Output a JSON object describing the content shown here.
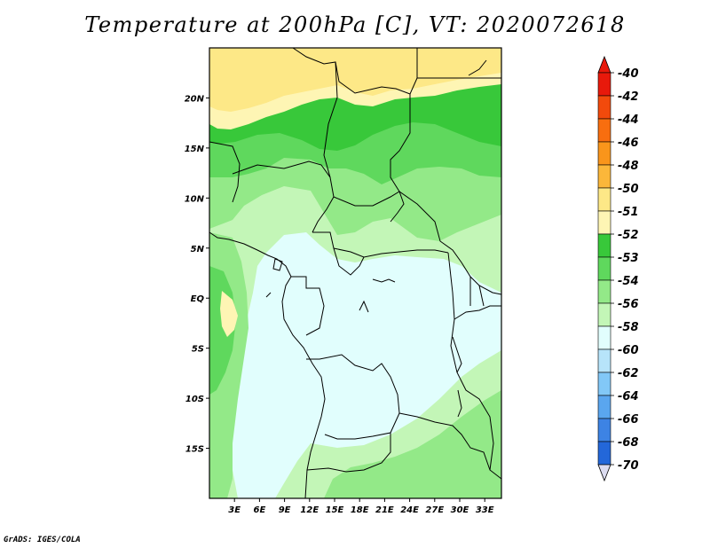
{
  "title": "Temperature at 200hPa [C], VT: 2020072618",
  "credit": "GrADS: IGES/COLA",
  "map": {
    "lon_range": [
      0,
      35
    ],
    "lat_range": [
      -20,
      25
    ],
    "lat_ticks": [
      {
        "lat": 20,
        "label": "20N"
      },
      {
        "lat": 15,
        "label": "15N"
      },
      {
        "lat": 10,
        "label": "10N"
      },
      {
        "lat": 5,
        "label": "5N"
      },
      {
        "lat": 0,
        "label": "EQ"
      },
      {
        "lat": -5,
        "label": "5S"
      },
      {
        "lat": -10,
        "label": "10S"
      },
      {
        "lat": -15,
        "label": "15S"
      }
    ],
    "lon_ticks": [
      {
        "lon": 3,
        "label": "3E"
      },
      {
        "lon": 6,
        "label": "6E"
      },
      {
        "lon": 9,
        "label": "9E"
      },
      {
        "lon": 12,
        "label": "12E"
      },
      {
        "lon": 15,
        "label": "15E"
      },
      {
        "lon": 18,
        "label": "18E"
      },
      {
        "lon": 21,
        "label": "21E"
      },
      {
        "lon": 24,
        "label": "24E"
      },
      {
        "lon": 27,
        "label": "27E"
      },
      {
        "lon": 30,
        "label": "30E"
      },
      {
        "lon": 33,
        "label": "33E"
      }
    ]
  },
  "colorbar": {
    "labels": [
      "-40",
      "-42",
      "-44",
      "-46",
      "-48",
      "-50",
      "-51",
      "-52",
      "-53",
      "-54",
      "-56",
      "-58",
      "-60",
      "-62",
      "-64",
      "-66",
      "-68",
      "-70"
    ],
    "colors": [
      "#e8190b",
      "#f24a0c",
      "#f86e0f",
      "#f9951b",
      "#fbb73a",
      "#fde887",
      "#fef5b4",
      "#38c83a",
      "#5fd85d",
      "#93e988",
      "#c3f6b7",
      "#e1fefd",
      "#b7e4fa",
      "#82c8f7",
      "#5aa6ef",
      "#3d83e4",
      "#2367d9",
      "#0f4bc8",
      "#0a26a8",
      "#08087a",
      "#dcdcf0"
    ],
    "top_arrow_color": "#e8190b",
    "bottom_arrow_color": "#dcdcf0"
  }
}
